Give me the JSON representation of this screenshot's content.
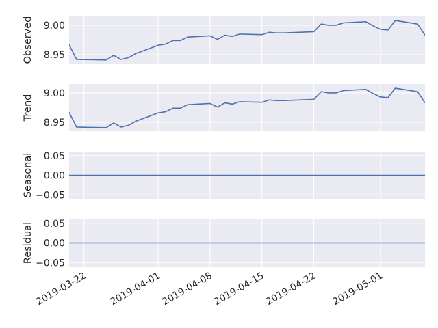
{
  "chart_data": {
    "type": "line",
    "x": [
      "2019-03-19",
      "2019-03-20",
      "2019-03-21",
      "2019-03-25",
      "2019-03-26",
      "2019-03-27",
      "2019-03-28",
      "2019-03-29",
      "2019-04-01",
      "2019-04-02",
      "2019-04-03",
      "2019-04-04",
      "2019-04-05",
      "2019-04-08",
      "2019-04-09",
      "2019-04-10",
      "2019-04-11",
      "2019-04-12",
      "2019-04-15",
      "2019-04-16",
      "2019-04-17",
      "2019-04-18",
      "2019-04-22",
      "2019-04-23",
      "2019-04-24",
      "2019-04-25",
      "2019-04-26",
      "2019-04-29",
      "2019-04-30",
      "2019-05-01",
      "2019-05-02",
      "2019-05-03",
      "2019-05-06",
      "2019-05-07"
    ],
    "xlim": [
      "2019-03-20",
      "2019-05-07"
    ],
    "x_ticks": [
      "2019-03-22",
      "2019-04-01",
      "2019-04-08",
      "2019-04-15",
      "2019-04-22",
      "2019-05-01"
    ],
    "grid": true,
    "panels": [
      {
        "ylabel": "Observed",
        "ylim": [
          8.935,
          9.015
        ],
        "yticks": [
          "8.95",
          "9.00"
        ],
        "series": [
          {
            "values": [
              8.953,
              8.967,
              8.942,
              8.941,
              8.949,
              8.942,
              8.945,
              8.952,
              8.966,
              8.968,
              8.974,
              8.974,
              8.98,
              8.982,
              8.976,
              8.983,
              8.981,
              8.985,
              8.984,
              8.988,
              8.987,
              8.987,
              8.989,
              9.002,
              9.0,
              9.0,
              9.004,
              9.006,
              8.999,
              8.993,
              8.992,
              9.008,
              9.002,
              8.983
            ]
          }
        ]
      },
      {
        "ylabel": "Trend",
        "ylim": [
          8.935,
          9.015
        ],
        "yticks": [
          "8.95",
          "9.00"
        ],
        "series": [
          {
            "values": [
              8.953,
              8.967,
              8.942,
              8.941,
              8.949,
              8.942,
              8.945,
              8.952,
              8.966,
              8.968,
              8.974,
              8.974,
              8.98,
              8.982,
              8.976,
              8.983,
              8.981,
              8.985,
              8.984,
              8.988,
              8.987,
              8.987,
              8.989,
              9.002,
              9.0,
              9.0,
              9.004,
              9.006,
              8.999,
              8.993,
              8.992,
              9.008,
              9.002,
              8.983
            ]
          }
        ]
      },
      {
        "ylabel": "Seasonal",
        "ylim": [
          -0.06,
          0.06
        ],
        "yticks": [
          "0.05",
          "0.00",
          "−0.05"
        ],
        "series": [
          {
            "values": [
              0,
              0,
              0,
              0,
              0,
              0,
              0,
              0,
              0,
              0,
              0,
              0,
              0,
              0,
              0,
              0,
              0,
              0,
              0,
              0,
              0,
              0,
              0,
              0,
              0,
              0,
              0,
              0,
              0,
              0,
              0,
              0,
              0,
              0
            ]
          }
        ]
      },
      {
        "ylabel": "Residual",
        "ylim": [
          -0.06,
          0.06
        ],
        "yticks": [
          "0.05",
          "0.00",
          "−0.05"
        ],
        "series": [
          {
            "values": [
              0,
              0,
              0,
              0,
              0,
              0,
              0,
              0,
              0,
              0,
              0,
              0,
              0,
              0,
              0,
              0,
              0,
              0,
              0,
              0,
              0,
              0,
              0,
              0,
              0,
              0,
              0,
              0,
              0,
              0,
              0,
              0,
              0,
              0
            ]
          }
        ]
      }
    ]
  }
}
